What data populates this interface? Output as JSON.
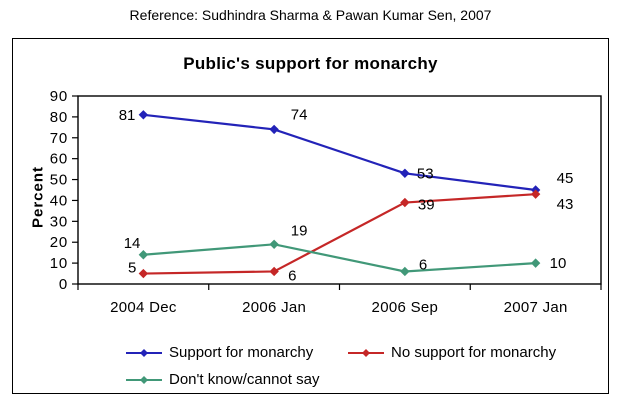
{
  "reference": "Reference: Sudhindra Sharma & Pawan Kumar Sen, 2007",
  "chart_data": {
    "type": "line",
    "title": "Public's support for monarchy",
    "xlabel": "",
    "ylabel": "Percent",
    "categories": [
      "2004 Dec",
      "2006 Jan",
      "2006 Sep",
      "2007 Jan"
    ],
    "series": [
      {
        "name": "Support for monarchy",
        "color": "#2323B8",
        "values": [
          81,
          74,
          53,
          45
        ]
      },
      {
        "name": "No support for monarchy",
        "color": "#C52727",
        "values": [
          5,
          6,
          39,
          43
        ]
      },
      {
        "name": "Don't know/cannot say",
        "color": "#419878",
        "values": [
          14,
          19,
          6,
          10
        ]
      }
    ],
    "ylim": [
      0,
      90
    ],
    "yticks": [
      0,
      10,
      20,
      30,
      40,
      50,
      60,
      70,
      80,
      90
    ],
    "grid": false,
    "marker": "diamond",
    "data_labels": true,
    "legend_position": "bottom"
  }
}
